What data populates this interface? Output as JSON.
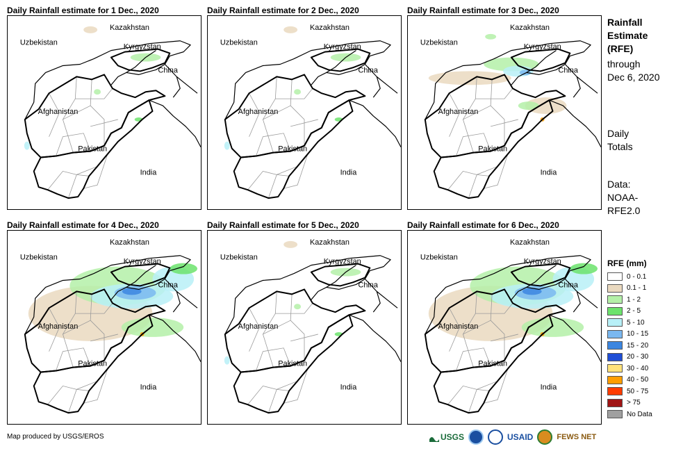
{
  "panels": [
    {
      "title": "Daily Rainfall estimate for 1 Dec., 2020",
      "rain_level": "trace"
    },
    {
      "title": "Daily Rainfall estimate for 2 Dec., 2020",
      "rain_level": "trace"
    },
    {
      "title": "Daily Rainfall estimate for 3 Dec., 2020",
      "rain_level": "light"
    },
    {
      "title": "Daily Rainfall estimate for 4 Dec., 2020",
      "rain_level": "moderate"
    },
    {
      "title": "Daily Rainfall estimate for 5 Dec., 2020",
      "rain_level": "trace"
    },
    {
      "title": "Daily Rainfall estimate for 6 Dec., 2020",
      "rain_level": "moderate"
    }
  ],
  "map_labels": {
    "kazakhstan": "Kazakhstan",
    "uzbekistan": "Uzbekistan",
    "kyrgyzstan": "Kyrgyzstan",
    "china": "China",
    "afghanistan": "Afghanistan",
    "pakistan": "Pakistan",
    "india": "India"
  },
  "sidebar": {
    "title_line1": "Rainfall",
    "title_line2": "Estimate",
    "title_line3": "(RFE)",
    "sub_line1": "through",
    "sub_line2": "Dec 6, 2020",
    "daily_line1": "Daily",
    "daily_line2": "Totals",
    "data_line1": "Data:",
    "data_line2": "NOAA-",
    "data_line3": "RFE2.0"
  },
  "legend": {
    "title": "RFE (mm)",
    "items": [
      {
        "label": "0 - 0.1",
        "color": "#ffffff"
      },
      {
        "label": "0.1 - 1",
        "color": "#ead9bf"
      },
      {
        "label": "1 - 2",
        "color": "#b4f0a8"
      },
      {
        "label": "2 - 5",
        "color": "#6ce36c"
      },
      {
        "label": "5 - 10",
        "color": "#b8f0f7"
      },
      {
        "label": "10 - 15",
        "color": "#7ab8f0"
      },
      {
        "label": "15 - 20",
        "color": "#3c86e0"
      },
      {
        "label": "20 - 30",
        "color": "#1f4ed6"
      },
      {
        "label": "30 - 40",
        "color": "#ffe27a"
      },
      {
        "label": "40 - 50",
        "color": "#ff9e00"
      },
      {
        "label": "50 - 75",
        "color": "#ff3c00"
      },
      {
        "label": "> 75",
        "color": "#a01414"
      },
      {
        "label": "No Data",
        "color": "#a0a0a0"
      }
    ]
  },
  "footer": {
    "credit": "Map produced by USGS/EROS",
    "logos": {
      "usgs": "USGS",
      "usaid": "USAID",
      "fewsnet": "FEWS NET"
    }
  }
}
